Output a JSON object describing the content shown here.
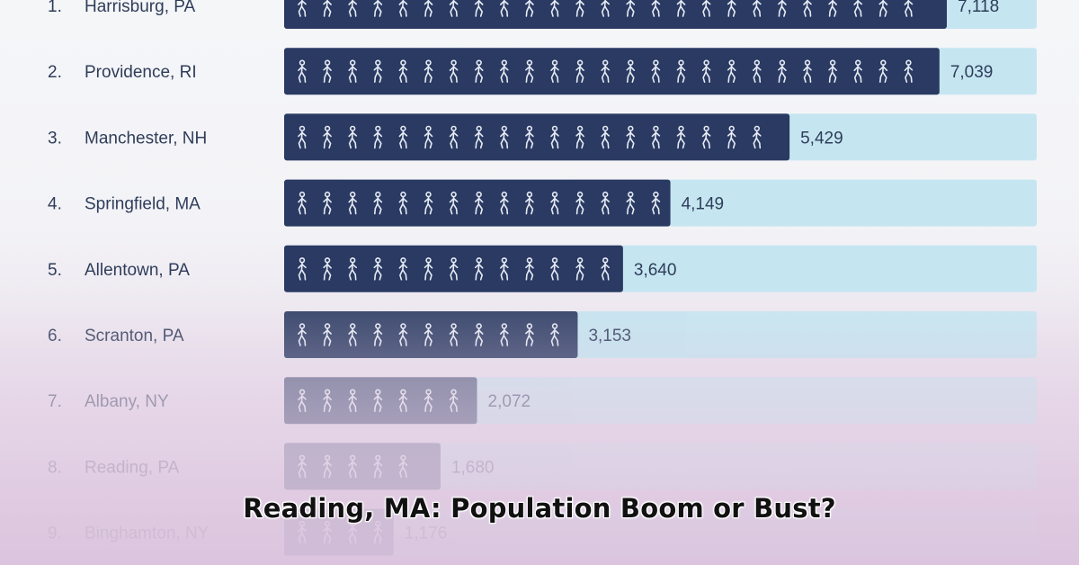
{
  "headline": "Reading, MA: Population Boom or Bust?",
  "colors": {
    "bar_fill": "#2a3a62",
    "track_fill": "#c5e6f1",
    "label_text": "#2f3d5a",
    "value_text": "#2f3d5a",
    "figure_stroke": "#e6ebf5"
  },
  "icons": {
    "unit": "walking-person-icon"
  },
  "chart_data": {
    "type": "bar",
    "orientation": "horizontal",
    "categories": [
      "Harrisburg, PA",
      "Providence, RI",
      "Manchester, NH",
      "Springfield, MA",
      "Allentown, PA",
      "Scranton, PA",
      "Albany, NY",
      "Reading, PA",
      "Binghamton, NY"
    ],
    "ranks": [
      "1.",
      "2.",
      "3.",
      "4.",
      "5.",
      "6.",
      "7.",
      "8.",
      "9."
    ],
    "values": [
      7118,
      7039,
      5429,
      4149,
      3640,
      3153,
      2072,
      1680,
      1176
    ],
    "value_labels": [
      "7,118",
      "7,039",
      "5,429",
      "4,149",
      "3,640",
      "3,153",
      "2,072",
      "1,680",
      "1,176"
    ],
    "xlim": [
      0,
      8000
    ],
    "grid": false,
    "legend": "none"
  }
}
